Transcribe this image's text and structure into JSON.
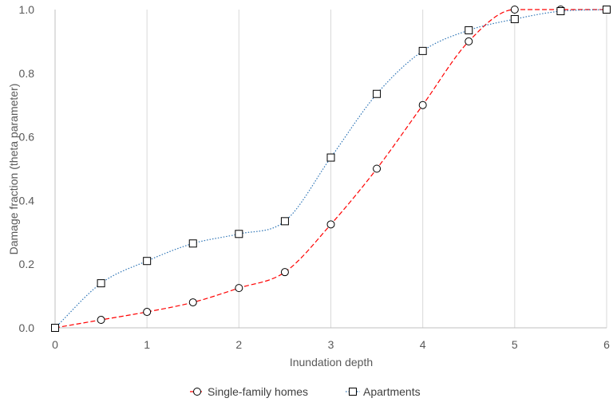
{
  "chart_data": {
    "type": "line",
    "xlabel": "Inundation depth",
    "ylabel": "Damage fraction (theta parameter)",
    "xlim": [
      0,
      6
    ],
    "ylim": [
      0,
      1.0
    ],
    "x_ticks": [
      "0",
      "1",
      "2",
      "3",
      "4",
      "5",
      "6"
    ],
    "y_ticks": [
      "0.0",
      "0.2",
      "0.4",
      "0.6",
      "0.8",
      "1.0"
    ],
    "grid": "vertical",
    "legend_position": "bottom",
    "x": [
      0,
      0.5,
      1,
      1.5,
      2,
      2.5,
      3,
      3.5,
      4,
      4.5,
      5,
      5.5,
      6
    ],
    "series": [
      {
        "name": "Single-family homes",
        "values": [
          0,
          0.025,
          0.05,
          0.08,
          0.125,
          0.175,
          0.325,
          0.5,
          0.7,
          0.9,
          1.0,
          1.0,
          1.0
        ],
        "color": "#ff0000",
        "marker": "circle",
        "line_style": "dashed"
      },
      {
        "name": "Apartments",
        "values": [
          0,
          0.14,
          0.21,
          0.265,
          0.295,
          0.335,
          0.535,
          0.735,
          0.87,
          0.935,
          0.97,
          0.995,
          1.0
        ],
        "color": "#2e75b6",
        "marker": "square",
        "line_style": "dotted"
      }
    ]
  }
}
